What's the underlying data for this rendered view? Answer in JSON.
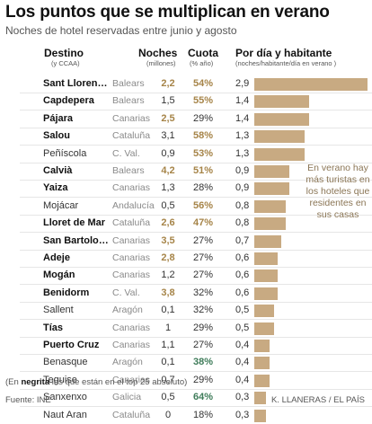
{
  "title": "Los puntos que se multiplican en verano",
  "subtitle": "Noches de hotel reservadas entre junio y agosto",
  "headers": {
    "destino": "Destino",
    "destino_sub": "(y CCAA)",
    "noches": "Noches",
    "noches_sub": "(millones)",
    "cuota": "Cuota",
    "cuota_sub": "(% año)",
    "pordia": "Por día y habitante",
    "pordia_sub": "(noches/habitante/día en verano )"
  },
  "annotation": "En verano hay más turistas en los hoteles que residentes en sus casas",
  "note": {
    "pre": "(En ",
    "bold": "negrita",
    "post": " los que están en el top 25 absoluto)"
  },
  "source": "Fuente: INE",
  "credit": "K. LLANERAS  /  EL PAÍS",
  "colors": {
    "bar": "#c8aa82",
    "highlight": "#a68448",
    "green": "#3f7c5a"
  },
  "chart_data": {
    "type": "table",
    "bar_max": 2.9,
    "rows": [
      {
        "destino": "Sant Llorenç...",
        "region": "Balears",
        "noches": "2,2",
        "cuota": "54%",
        "value": 2.9,
        "value_label": "2,9",
        "bold": true,
        "noches_hl": true,
        "cuota_style": "hl"
      },
      {
        "destino": "Capdepera",
        "region": "Balears",
        "noches": "1,5",
        "cuota": "55%",
        "value": 1.4,
        "value_label": "1,4",
        "bold": true,
        "noches_hl": false,
        "cuota_style": "hl"
      },
      {
        "destino": "Pájara",
        "region": "Canarias",
        "noches": "2,5",
        "cuota": "29%",
        "value": 1.4,
        "value_label": "1,4",
        "bold": true,
        "noches_hl": true,
        "cuota_style": ""
      },
      {
        "destino": "Salou",
        "region": "Cataluña",
        "noches": "3,1",
        "cuota": "58%",
        "value": 1.3,
        "value_label": "1,3",
        "bold": true,
        "noches_hl": false,
        "cuota_style": "hl"
      },
      {
        "destino": "Peñíscola",
        "region": "C. Val.",
        "noches": "0,9",
        "cuota": "53%",
        "value": 1.3,
        "value_label": "1,3",
        "bold": false,
        "noches_hl": false,
        "cuota_style": "hl"
      },
      {
        "destino": "Calvià",
        "region": "Balears",
        "noches": "4,2",
        "cuota": "51%",
        "value": 0.9,
        "value_label": "0,9",
        "bold": true,
        "noches_hl": true,
        "cuota_style": "hl"
      },
      {
        "destino": "Yaiza",
        "region": "Canarias",
        "noches": "1,3",
        "cuota": "28%",
        "value": 0.9,
        "value_label": "0,9",
        "bold": true,
        "noches_hl": false,
        "cuota_style": ""
      },
      {
        "destino": "Mojácar",
        "region": "Andalucía",
        "noches": "0,5",
        "cuota": "56%",
        "value": 0.8,
        "value_label": "0,8",
        "bold": false,
        "noches_hl": false,
        "cuota_style": "hl"
      },
      {
        "destino": "Lloret de Mar",
        "region": "Cataluña",
        "noches": "2,6",
        "cuota": "47%",
        "value": 0.8,
        "value_label": "0,8",
        "bold": true,
        "noches_hl": true,
        "cuota_style": "hl"
      },
      {
        "destino": "San Bartolomé...",
        "region": "Canarias",
        "noches": "3,5",
        "cuota": "27%",
        "value": 0.7,
        "value_label": "0,7",
        "bold": true,
        "noches_hl": true,
        "cuota_style": ""
      },
      {
        "destino": "Adeje",
        "region": "Canarias",
        "noches": "2,8",
        "cuota": "27%",
        "value": 0.6,
        "value_label": "0,6",
        "bold": true,
        "noches_hl": true,
        "cuota_style": ""
      },
      {
        "destino": "Mogán",
        "region": "Canarias",
        "noches": "1,2",
        "cuota": "27%",
        "value": 0.6,
        "value_label": "0,6",
        "bold": true,
        "noches_hl": false,
        "cuota_style": ""
      },
      {
        "destino": "Benidorm",
        "region": "C. Val.",
        "noches": "3,8",
        "cuota": "32%",
        "value": 0.6,
        "value_label": "0,6",
        "bold": true,
        "noches_hl": true,
        "cuota_style": ""
      },
      {
        "destino": "Sallent",
        "region": "Aragón",
        "noches": "0,1",
        "cuota": "32%",
        "value": 0.5,
        "value_label": "0,5",
        "bold": false,
        "noches_hl": false,
        "cuota_style": ""
      },
      {
        "destino": "Tías",
        "region": "Canarias",
        "noches": "1",
        "cuota": "29%",
        "value": 0.5,
        "value_label": "0,5",
        "bold": true,
        "noches_hl": false,
        "cuota_style": ""
      },
      {
        "destino": "Puerto Cruz",
        "region": "Canarias",
        "noches": "1,1",
        "cuota": "27%",
        "value": 0.4,
        "value_label": "0,4",
        "bold": true,
        "noches_hl": false,
        "cuota_style": ""
      },
      {
        "destino": "Benasque",
        "region": "Aragón",
        "noches": "0,1",
        "cuota": "38%",
        "value": 0.4,
        "value_label": "0,4",
        "bold": false,
        "noches_hl": false,
        "cuota_style": "gr"
      },
      {
        "destino": "Teguise",
        "region": "Canarias",
        "noches": "0,7",
        "cuota": "29%",
        "value": 0.4,
        "value_label": "0,4",
        "bold": false,
        "noches_hl": false,
        "cuota_style": ""
      },
      {
        "destino": "Sanxenxo",
        "region": "Galicia",
        "noches": "0,5",
        "cuota": "64%",
        "value": 0.3,
        "value_label": "0,3",
        "bold": false,
        "noches_hl": false,
        "cuota_style": "gr"
      },
      {
        "destino": "Naut Aran",
        "region": "Cataluña",
        "noches": "0",
        "cuota": "18%",
        "value": 0.3,
        "value_label": "0,3",
        "bold": false,
        "noches_hl": false,
        "cuota_style": ""
      }
    ]
  }
}
